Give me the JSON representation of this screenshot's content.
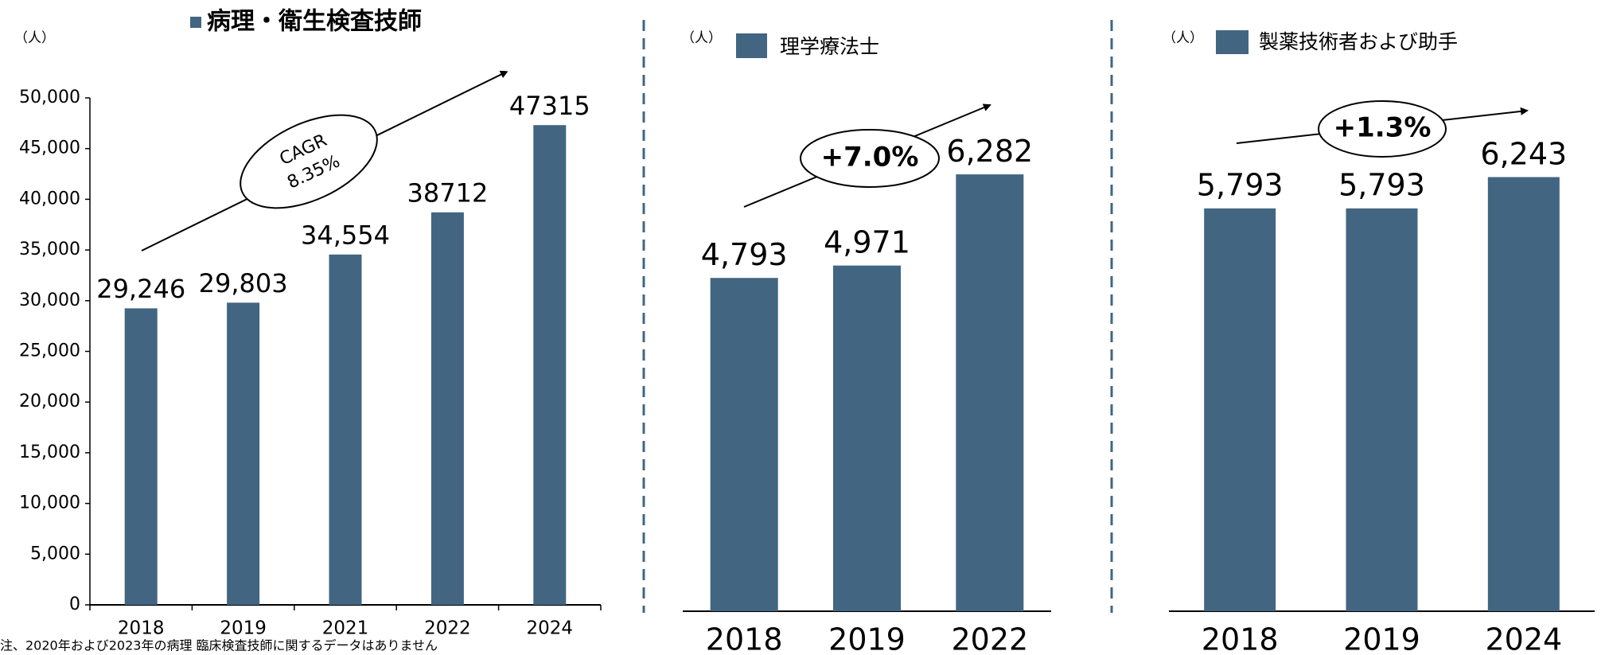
{
  "chart_data": [
    {
      "type": "bar",
      "title": "病理・衛生検査技師",
      "y_label": "（人）",
      "categories": [
        "2018",
        "2019",
        "2021",
        "2022",
        "2024"
      ],
      "values": [
        29246,
        29803,
        34554,
        38712,
        47315
      ],
      "value_labels": [
        "29,246",
        "29,803",
        "34,554",
        "38712",
        "47315"
      ],
      "color": "#426582",
      "ylim": [
        0,
        50000
      ],
      "yticks": [
        0,
        {
          "value": 5000,
          "label": "5,000"
        },
        {
          "value": 10000,
          "label": "10,000"
        },
        {
          "value": 15000,
          "label": "15,000"
        },
        {
          "value": 20000,
          "label": "20,000"
        },
        {
          "value": 25000,
          "label": "25,000"
        },
        {
          "value": 30000,
          "label": "30,000"
        },
        {
          "value": 35000,
          "label": "35,000"
        },
        {
          "value": 40000,
          "label": "40,000"
        },
        {
          "value": 45000,
          "label": "45,000"
        },
        {
          "value": 50000,
          "label": "50,000"
        }
      ],
      "annotations": [
        "CAGR",
        "8.35%"
      ],
      "note": "注、2020年および2023年の病理 臨床検査技師に関するデータはありません"
    },
    {
      "type": "bar",
      "title": "理学療法士",
      "y_label": "（人）",
      "categories": [
        "2018",
        "2019",
        "2022"
      ],
      "values": [
        4793,
        4971,
        6282
      ],
      "value_labels": [
        "4,793",
        "4,971",
        "6,282"
      ],
      "color": "#426582",
      "ylim": [
        0,
        8000
      ],
      "annotations": [
        "+7.0%"
      ]
    },
    {
      "type": "bar",
      "title": "製薬技術者および助手",
      "y_label": "（人）",
      "categories": [
        "2018",
        "2019",
        "2024"
      ],
      "values": [
        5793,
        5793,
        6243
      ],
      "value_labels": [
        "5,793",
        "5,793",
        "6,243"
      ],
      "color": "#426582",
      "ylim": [
        0,
        8000
      ],
      "annotations": [
        "+1.3%"
      ]
    }
  ]
}
